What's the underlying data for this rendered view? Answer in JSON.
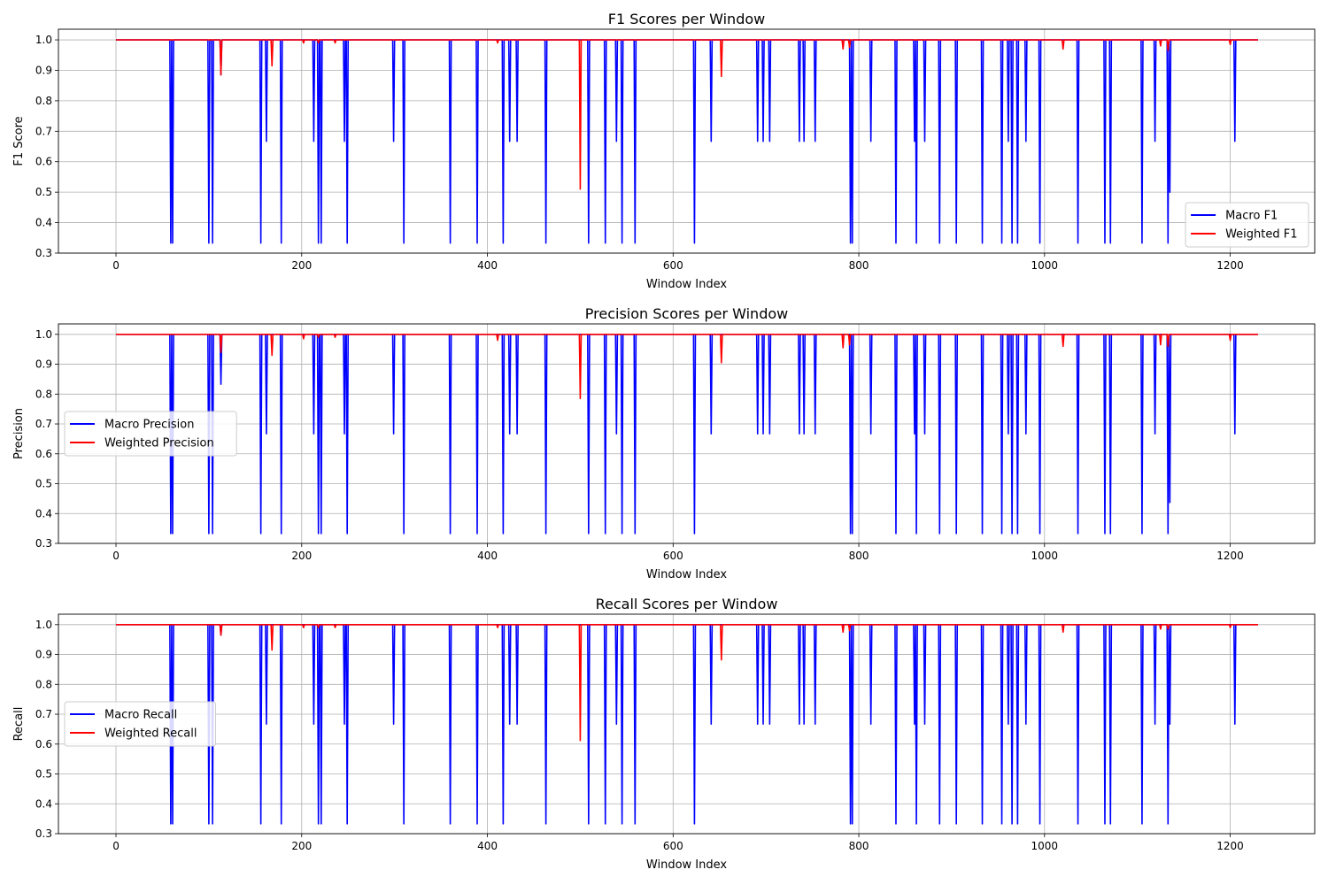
{
  "chart_data": [
    {
      "type": "line",
      "title": "F1 Scores per Window",
      "xlabel": "Window Index",
      "ylabel": "F1 Score",
      "xlim": [
        -62,
        1291
      ],
      "ylim": [
        0.3,
        1.035
      ],
      "xticks": [
        "0",
        "200",
        "400",
        "600",
        "800",
        "1000",
        "1200"
      ],
      "yticks": [
        "0.3",
        "0.4",
        "0.5",
        "0.6",
        "0.7",
        "0.8",
        "0.9",
        "1.0"
      ],
      "grid": true,
      "legend": "lower-right",
      "x_range": [
        0,
        1230
      ],
      "baseline": 1.0,
      "series": [
        {
          "name": "Macro F1",
          "color": "#0000ff",
          "dips": [
            [
              59,
              0.333
            ],
            [
              61,
              0.333
            ],
            [
              100,
              0.333
            ],
            [
              104,
              0.333
            ],
            [
              113,
              0.885
            ],
            [
              156,
              0.333
            ],
            [
              162,
              0.667
            ],
            [
              178,
              0.333
            ],
            [
              213,
              0.667
            ],
            [
              218,
              0.333
            ],
            [
              221,
              0.333
            ],
            [
              246,
              0.667
            ],
            [
              249,
              0.333
            ],
            [
              299,
              0.667
            ],
            [
              310,
              0.333
            ],
            [
              360,
              0.333
            ],
            [
              389,
              0.333
            ],
            [
              417,
              0.333
            ],
            [
              424,
              0.667
            ],
            [
              432,
              0.667
            ],
            [
              463,
              0.333
            ],
            [
              509,
              0.333
            ],
            [
              527,
              0.333
            ],
            [
              539,
              0.667
            ],
            [
              545,
              0.333
            ],
            [
              559,
              0.333
            ],
            [
              623,
              0.333
            ],
            [
              641,
              0.667
            ],
            [
              691,
              0.667
            ],
            [
              697,
              0.667
            ],
            [
              704,
              0.667
            ],
            [
              736,
              0.667
            ],
            [
              741,
              0.667
            ],
            [
              753,
              0.667
            ],
            [
              791,
              0.333
            ],
            [
              793,
              0.333
            ],
            [
              813,
              0.667
            ],
            [
              840,
              0.333
            ],
            [
              860,
              0.667
            ],
            [
              862,
              0.333
            ],
            [
              871,
              0.667
            ],
            [
              887,
              0.333
            ],
            [
              905,
              0.333
            ],
            [
              933,
              0.333
            ],
            [
              954,
              0.333
            ],
            [
              961,
              0.667
            ],
            [
              965,
              0.333
            ],
            [
              971,
              0.333
            ],
            [
              980,
              0.667
            ],
            [
              995,
              0.333
            ],
            [
              1036,
              0.333
            ],
            [
              1065,
              0.333
            ],
            [
              1071,
              0.333
            ],
            [
              1105,
              0.333
            ],
            [
              1119,
              0.667
            ],
            [
              1133,
              0.333
            ],
            [
              1135,
              0.5
            ],
            [
              1205,
              0.667
            ]
          ]
        },
        {
          "name": "Weighted F1",
          "color": "#ff0000",
          "dips": [
            [
              113,
              0.885
            ],
            [
              168,
              0.915
            ],
            [
              202,
              0.99
            ],
            [
              218,
              0.99
            ],
            [
              236,
              0.99
            ],
            [
              411,
              0.99
            ],
            [
              500,
              0.51
            ],
            [
              652,
              0.88
            ],
            [
              783,
              0.97
            ],
            [
              790,
              0.975
            ],
            [
              1020,
              0.97
            ],
            [
              1125,
              0.98
            ],
            [
              1133,
              0.965
            ],
            [
              1200,
              0.985
            ]
          ]
        }
      ]
    },
    {
      "type": "line",
      "title": "Precision Scores per Window",
      "xlabel": "Window Index",
      "ylabel": "Precision",
      "xlim": [
        -62,
        1291
      ],
      "ylim": [
        0.3,
        1.035
      ],
      "xticks": [
        "0",
        "200",
        "400",
        "600",
        "800",
        "1000",
        "1200"
      ],
      "yticks": [
        "0.3",
        "0.4",
        "0.5",
        "0.6",
        "0.7",
        "0.8",
        "0.9",
        "1.0"
      ],
      "grid": true,
      "legend": "center-left",
      "x_range": [
        0,
        1230
      ],
      "baseline": 1.0,
      "series": [
        {
          "name": "Macro Precision",
          "color": "#0000ff",
          "dips": [
            [
              59,
              0.333
            ],
            [
              61,
              0.333
            ],
            [
              100,
              0.333
            ],
            [
              104,
              0.333
            ],
            [
              113,
              0.833
            ],
            [
              156,
              0.333
            ],
            [
              162,
              0.667
            ],
            [
              178,
              0.333
            ],
            [
              213,
              0.667
            ],
            [
              218,
              0.333
            ],
            [
              221,
              0.333
            ],
            [
              246,
              0.667
            ],
            [
              249,
              0.333
            ],
            [
              299,
              0.667
            ],
            [
              310,
              0.333
            ],
            [
              360,
              0.333
            ],
            [
              389,
              0.333
            ],
            [
              417,
              0.333
            ],
            [
              424,
              0.667
            ],
            [
              432,
              0.667
            ],
            [
              463,
              0.333
            ],
            [
              509,
              0.333
            ],
            [
              527,
              0.333
            ],
            [
              539,
              0.667
            ],
            [
              545,
              0.333
            ],
            [
              559,
              0.333
            ],
            [
              623,
              0.333
            ],
            [
              641,
              0.667
            ],
            [
              691,
              0.667
            ],
            [
              697,
              0.667
            ],
            [
              704,
              0.667
            ],
            [
              736,
              0.667
            ],
            [
              741,
              0.667
            ],
            [
              753,
              0.667
            ],
            [
              791,
              0.333
            ],
            [
              793,
              0.333
            ],
            [
              813,
              0.667
            ],
            [
              840,
              0.333
            ],
            [
              860,
              0.667
            ],
            [
              862,
              0.333
            ],
            [
              871,
              0.667
            ],
            [
              887,
              0.333
            ],
            [
              905,
              0.333
            ],
            [
              933,
              0.333
            ],
            [
              954,
              0.333
            ],
            [
              961,
              0.667
            ],
            [
              965,
              0.333
            ],
            [
              971,
              0.333
            ],
            [
              980,
              0.667
            ],
            [
              995,
              0.333
            ],
            [
              1036,
              0.333
            ],
            [
              1065,
              0.333
            ],
            [
              1071,
              0.333
            ],
            [
              1105,
              0.333
            ],
            [
              1119,
              0.667
            ],
            [
              1133,
              0.333
            ],
            [
              1135,
              0.437
            ],
            [
              1205,
              0.667
            ]
          ]
        },
        {
          "name": "Weighted Precision",
          "color": "#ff0000",
          "dips": [
            [
              113,
              0.94
            ],
            [
              168,
              0.93
            ],
            [
              202,
              0.985
            ],
            [
              218,
              0.99
            ],
            [
              236,
              0.99
            ],
            [
              411,
              0.98
            ],
            [
              500,
              0.785
            ],
            [
              652,
              0.905
            ],
            [
              783,
              0.955
            ],
            [
              790,
              0.965
            ],
            [
              1020,
              0.96
            ],
            [
              1125,
              0.965
            ],
            [
              1133,
              0.96
            ],
            [
              1200,
              0.98
            ]
          ]
        }
      ]
    },
    {
      "type": "line",
      "title": "Recall Scores per Window",
      "xlabel": "Window Index",
      "ylabel": "Recall",
      "xlim": [
        -62,
        1291
      ],
      "ylim": [
        0.3,
        1.035
      ],
      "xticks": [
        "0",
        "200",
        "400",
        "600",
        "800",
        "1000",
        "1200"
      ],
      "yticks": [
        "0.3",
        "0.4",
        "0.5",
        "0.6",
        "0.7",
        "0.8",
        "0.9",
        "1.0"
      ],
      "grid": true,
      "legend": "center-left",
      "x_range": [
        0,
        1230
      ],
      "baseline": 1.0,
      "series": [
        {
          "name": "Macro Recall",
          "color": "#0000ff",
          "dips": [
            [
              59,
              0.333
            ],
            [
              61,
              0.333
            ],
            [
              100,
              0.333
            ],
            [
              104,
              0.333
            ],
            [
              113,
              0.965
            ],
            [
              156,
              0.333
            ],
            [
              162,
              0.667
            ],
            [
              178,
              0.333
            ],
            [
              213,
              0.667
            ],
            [
              218,
              0.333
            ],
            [
              221,
              0.333
            ],
            [
              246,
              0.667
            ],
            [
              249,
              0.333
            ],
            [
              299,
              0.667
            ],
            [
              310,
              0.333
            ],
            [
              360,
              0.333
            ],
            [
              389,
              0.333
            ],
            [
              417,
              0.333
            ],
            [
              424,
              0.667
            ],
            [
              432,
              0.667
            ],
            [
              463,
              0.333
            ],
            [
              509,
              0.333
            ],
            [
              527,
              0.333
            ],
            [
              539,
              0.667
            ],
            [
              545,
              0.333
            ],
            [
              559,
              0.333
            ],
            [
              623,
              0.333
            ],
            [
              641,
              0.667
            ],
            [
              691,
              0.667
            ],
            [
              697,
              0.667
            ],
            [
              704,
              0.667
            ],
            [
              736,
              0.667
            ],
            [
              741,
              0.667
            ],
            [
              753,
              0.667
            ],
            [
              791,
              0.333
            ],
            [
              793,
              0.333
            ],
            [
              813,
              0.667
            ],
            [
              840,
              0.333
            ],
            [
              860,
              0.667
            ],
            [
              862,
              0.333
            ],
            [
              871,
              0.667
            ],
            [
              887,
              0.333
            ],
            [
              905,
              0.333
            ],
            [
              933,
              0.333
            ],
            [
              954,
              0.333
            ],
            [
              961,
              0.667
            ],
            [
              965,
              0.333
            ],
            [
              971,
              0.333
            ],
            [
              980,
              0.667
            ],
            [
              995,
              0.333
            ],
            [
              1036,
              0.333
            ],
            [
              1065,
              0.333
            ],
            [
              1071,
              0.333
            ],
            [
              1105,
              0.333
            ],
            [
              1119,
              0.667
            ],
            [
              1133,
              0.333
            ],
            [
              1135,
              0.667
            ],
            [
              1205,
              0.667
            ]
          ]
        },
        {
          "name": "Weighted Recall",
          "color": "#ff0000",
          "dips": [
            [
              113,
              0.965
            ],
            [
              168,
              0.915
            ],
            [
              202,
              0.99
            ],
            [
              218,
              0.99
            ],
            [
              236,
              0.99
            ],
            [
              411,
              0.99
            ],
            [
              500,
              0.612
            ],
            [
              652,
              0.882
            ],
            [
              783,
              0.975
            ],
            [
              790,
              0.98
            ],
            [
              1020,
              0.975
            ],
            [
              1125,
              0.985
            ],
            [
              1133,
              0.985
            ],
            [
              1200,
              0.99
            ]
          ]
        }
      ]
    }
  ]
}
